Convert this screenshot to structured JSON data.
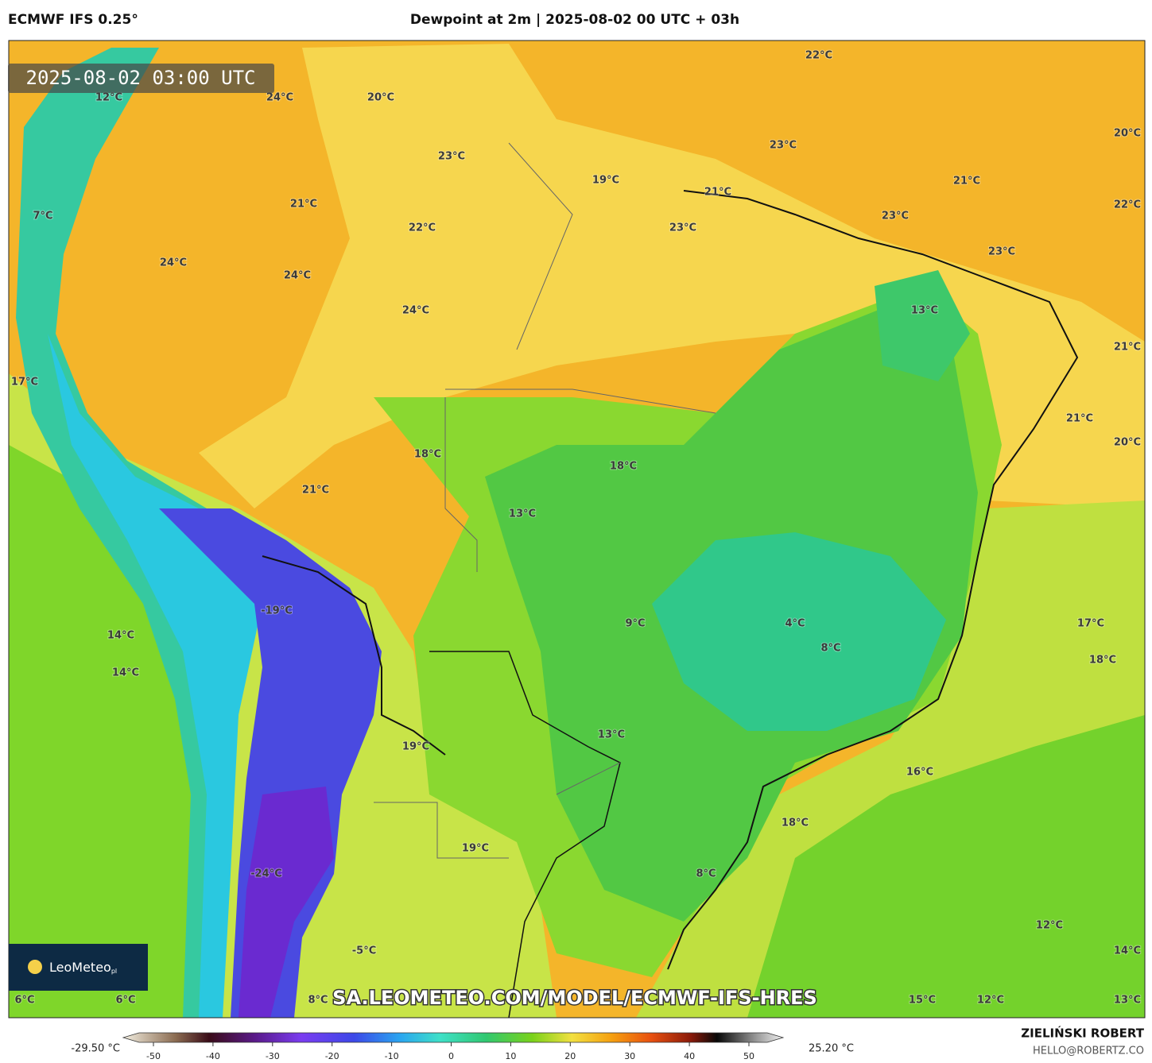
{
  "header": {
    "model": "ECMWF IFS 0.25°",
    "title": "Dewpoint at 2m | 2025-08-02 00 UTC + 03h"
  },
  "map": {
    "timestamp": "2025-08-02 03:00 UTC",
    "watermark": "SA.LEOMETEO.COM/MODEL/ECMWF-IFS-HRES",
    "logo": "LeoMeteo",
    "logo_suffix": "pl",
    "labels": [
      "22°C",
      "12°C",
      "24°C",
      "20°C",
      "20°C",
      "23°C",
      "23°C",
      "19°C",
      "21°C",
      "21°C",
      "7°C",
      "21°C",
      "22°C",
      "23°C",
      "23°C",
      "22°C",
      "24°C",
      "24°C",
      "23°C",
      "13°C",
      "24°C",
      "21°C",
      "17°C",
      "21°C",
      "20°C",
      "18°C",
      "18°C",
      "21°C",
      "13°C",
      "-19°C",
      "9°C",
      "4°C",
      "17°C",
      "14°C",
      "8°C",
      "18°C",
      "14°C",
      "13°C",
      "19°C",
      "16°C",
      "18°C",
      "19°C",
      "-24°C",
      "8°C",
      "12°C",
      "-5°C",
      "14°C",
      "6°C",
      "6°C",
      "8°C",
      "15°C",
      "12°C",
      "13°C"
    ]
  },
  "colorbar": {
    "min_label": "-29.50 °C",
    "max_label": "25.20 °C",
    "ticks": [
      -50,
      -40,
      -30,
      -20,
      -10,
      0,
      10,
      20,
      30,
      40,
      50
    ]
  },
  "credits": {
    "name": "ZIELIŃSKI ROBERT",
    "email": "HELLO@ROBERTZ.CO"
  }
}
